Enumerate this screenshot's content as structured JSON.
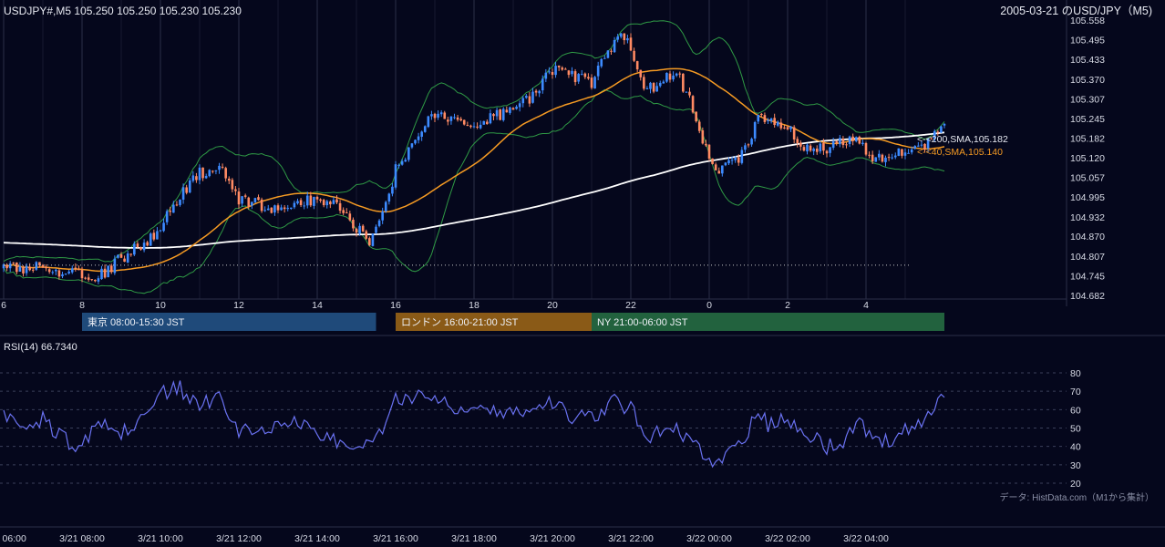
{
  "header": {
    "symbol_ohlc": "USDJPY#,M5 105.250 105.250 105.230 105.230",
    "title_right": "2005-03-21 のUSD/JPY（M5)"
  },
  "price_axis": {
    "ticks": [
      "105.558",
      "105.495",
      "105.433",
      "105.370",
      "105.307",
      "105.245",
      "105.182",
      "105.120",
      "105.057",
      "104.995",
      "104.932",
      "104.870",
      "104.807",
      "104.745",
      "104.682"
    ],
    "min": 104.682,
    "max": 105.558
  },
  "hour_axis": {
    "ticks": [
      "6",
      "8",
      "10",
      "12",
      "14",
      "16",
      "18",
      "20",
      "22",
      "0",
      "2",
      "4"
    ]
  },
  "sessions": [
    {
      "label": "東京 08:00-15:30 JST",
      "color": "#1f4a7a",
      "start_hour": 8.0,
      "end_hour": 15.5
    },
    {
      "label": "ロンドン 16:00-21:00 JST",
      "color": "#8a5a17",
      "start_hour": 16.0,
      "end_hour": 21.0
    },
    {
      "label": "NY 21:00-06:00 JST",
      "color": "#22623e",
      "start_hour": 21.0,
      "end_hour": 30.0
    }
  ],
  "ma_labels": {
    "sma200": "<-<200,SMA,105.182",
    "sma40": "<-<40,SMA,105.140"
  },
  "rsi": {
    "label": "RSI(14) 66.7340",
    "ticks": [
      "80",
      "70",
      "60",
      "50",
      "40",
      "30",
      "20"
    ]
  },
  "time_axis": {
    "ticks": [
      "3/21 06:00",
      "3/21 08:00",
      "3/21 10:00",
      "3/21 12:00",
      "3/21 14:00",
      "3/21 16:00",
      "3/21 18:00",
      "3/21 20:00",
      "3/21 22:00",
      "3/22 00:00",
      "3/22 02:00",
      "3/22 04:00"
    ]
  },
  "source_note": "データ: HistData.com（M1から集計）",
  "colors": {
    "background": "#05071c",
    "bull": "#3d8bff",
    "bear": "#ff8a63",
    "sma40": "#f59a23",
    "sma200": "#ffffff",
    "bollinger": "#2f9a45",
    "rsi": "#6a72f2"
  },
  "chart_data": [
    {
      "type": "candlestick",
      "timeframe": "M5",
      "title": "USDJPY#,M5",
      "x_unit": "hour (JST, 2005-03-21 06:00 to 2005-03-22 05:30)",
      "ylim": [
        104.682,
        105.558
      ],
      "anchor_closes": [
        {
          "hour": 6.0,
          "close": 104.77
        },
        {
          "hour": 7.0,
          "close": 104.77
        },
        {
          "hour": 7.8,
          "close": 104.75
        },
        {
          "hour": 8.4,
          "close": 104.74
        },
        {
          "hour": 9.2,
          "close": 104.82
        },
        {
          "hour": 9.8,
          "close": 104.87
        },
        {
          "hour": 10.4,
          "close": 104.98
        },
        {
          "hour": 11.0,
          "close": 105.07
        },
        {
          "hour": 11.5,
          "close": 105.1
        },
        {
          "hour": 12.0,
          "close": 104.99
        },
        {
          "hour": 12.5,
          "close": 104.97
        },
        {
          "hour": 13.0,
          "close": 104.96
        },
        {
          "hour": 13.5,
          "close": 104.98
        },
        {
          "hour": 14.0,
          "close": 104.99
        },
        {
          "hour": 14.5,
          "close": 104.97
        },
        {
          "hour": 15.0,
          "close": 104.9
        },
        {
          "hour": 15.3,
          "close": 104.84
        },
        {
          "hour": 15.7,
          "close": 104.94
        },
        {
          "hour": 16.0,
          "close": 105.08
        },
        {
          "hour": 16.5,
          "close": 105.18
        },
        {
          "hour": 17.0,
          "close": 105.26
        },
        {
          "hour": 18.0,
          "close": 105.23
        },
        {
          "hour": 19.0,
          "close": 105.27
        },
        {
          "hour": 19.5,
          "close": 105.32
        },
        {
          "hour": 20.0,
          "close": 105.4
        },
        {
          "hour": 20.5,
          "close": 105.38
        },
        {
          "hour": 21.0,
          "close": 105.36
        },
        {
          "hour": 21.4,
          "close": 105.46
        },
        {
          "hour": 21.8,
          "close": 105.51
        },
        {
          "hour": 22.0,
          "close": 105.46
        },
        {
          "hour": 22.4,
          "close": 105.33
        },
        {
          "hour": 22.8,
          "close": 105.37
        },
        {
          "hour": 23.2,
          "close": 105.39
        },
        {
          "hour": 23.5,
          "close": 105.3
        },
        {
          "hour": 23.8,
          "close": 105.18
        },
        {
          "hour": 24.2,
          "close": 105.08
        },
        {
          "hour": 24.6,
          "close": 105.1
        },
        {
          "hour": 25.0,
          "close": 105.15
        },
        {
          "hour": 25.2,
          "close": 105.27
        },
        {
          "hour": 25.5,
          "close": 105.24
        },
        {
          "hour": 26.0,
          "close": 105.23
        },
        {
          "hour": 26.3,
          "close": 105.16
        },
        {
          "hour": 26.6,
          "close": 105.14
        },
        {
          "hour": 27.0,
          "close": 105.15
        },
        {
          "hour": 27.5,
          "close": 105.17
        },
        {
          "hour": 27.8,
          "close": 105.19
        },
        {
          "hour": 28.0,
          "close": 105.13
        },
        {
          "hour": 28.4,
          "close": 105.11
        },
        {
          "hour": 29.0,
          "close": 105.14
        },
        {
          "hour": 29.4,
          "close": 105.15
        },
        {
          "hour": 29.7,
          "close": 105.19
        },
        {
          "hour": 30.0,
          "close": 105.23
        }
      ],
      "series": [
        {
          "name": "200,SMA",
          "last_value": 105.182
        },
        {
          "name": "40,SMA",
          "last_value": 105.14
        }
      ],
      "bollinger_bands": true,
      "reference_line": 104.778,
      "grid": true
    },
    {
      "type": "line",
      "name": "RSI(14)",
      "last_value": 66.734,
      "ylim": [
        20,
        80
      ],
      "anchor_values": [
        {
          "hour": 6.0,
          "value": 58
        },
        {
          "hour": 6.5,
          "value": 48
        },
        {
          "hour": 7.0,
          "value": 55
        },
        {
          "hour": 7.5,
          "value": 45
        },
        {
          "hour": 7.9,
          "value": 40
        },
        {
          "hour": 8.5,
          "value": 52
        },
        {
          "hour": 9.0,
          "value": 46
        },
        {
          "hour": 9.5,
          "value": 55
        },
        {
          "hour": 10.0,
          "value": 68
        },
        {
          "hour": 10.5,
          "value": 72
        },
        {
          "hour": 11.0,
          "value": 60
        },
        {
          "hour": 11.5,
          "value": 70
        },
        {
          "hour": 12.0,
          "value": 47
        },
        {
          "hour": 12.5,
          "value": 52
        },
        {
          "hour": 13.0,
          "value": 50
        },
        {
          "hour": 13.5,
          "value": 55
        },
        {
          "hour": 14.0,
          "value": 48
        },
        {
          "hour": 14.5,
          "value": 43
        },
        {
          "hour": 15.0,
          "value": 36
        },
        {
          "hour": 15.5,
          "value": 44
        },
        {
          "hour": 16.0,
          "value": 65
        },
        {
          "hour": 16.5,
          "value": 68
        },
        {
          "hour": 17.0,
          "value": 67
        },
        {
          "hour": 17.5,
          "value": 62
        },
        {
          "hour": 18.0,
          "value": 63
        },
        {
          "hour": 18.5,
          "value": 60
        },
        {
          "hour": 19.0,
          "value": 58
        },
        {
          "hour": 19.5,
          "value": 60
        },
        {
          "hour": 20.0,
          "value": 65
        },
        {
          "hour": 20.5,
          "value": 56
        },
        {
          "hour": 21.0,
          "value": 55
        },
        {
          "hour": 21.5,
          "value": 65
        },
        {
          "hour": 22.0,
          "value": 60
        },
        {
          "hour": 22.5,
          "value": 45
        },
        {
          "hour": 23.0,
          "value": 53
        },
        {
          "hour": 23.5,
          "value": 42
        },
        {
          "hour": 24.0,
          "value": 33
        },
        {
          "hour": 24.5,
          "value": 35
        },
        {
          "hour": 25.0,
          "value": 48
        },
        {
          "hour": 25.2,
          "value": 60
        },
        {
          "hour": 25.5,
          "value": 52
        },
        {
          "hour": 26.0,
          "value": 55
        },
        {
          "hour": 26.5,
          "value": 48
        },
        {
          "hour": 27.0,
          "value": 40
        },
        {
          "hour": 27.5,
          "value": 44
        },
        {
          "hour": 27.8,
          "value": 56
        },
        {
          "hour": 28.0,
          "value": 48
        },
        {
          "hour": 28.3,
          "value": 40
        },
        {
          "hour": 28.8,
          "value": 46
        },
        {
          "hour": 29.2,
          "value": 50
        },
        {
          "hour": 29.5,
          "value": 55
        },
        {
          "hour": 29.7,
          "value": 63
        },
        {
          "hour": 29.9,
          "value": 68
        },
        {
          "hour": 30.0,
          "value": 66.7
        }
      ]
    }
  ]
}
